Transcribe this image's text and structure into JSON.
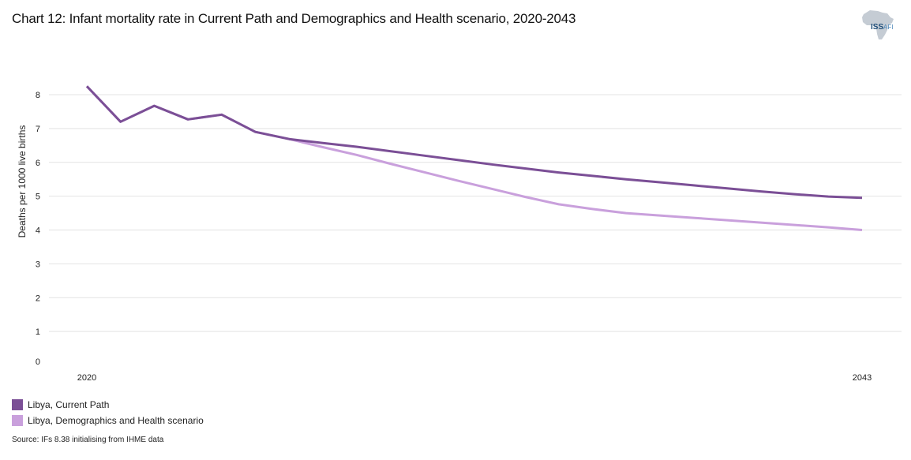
{
  "header": {
    "title": "Chart 12: Infant mortality rate in Current Path and Demographics and Health scenario, 2020-2043",
    "logo_primary": "ISS",
    "logo_secondary": "AFI",
    "logo_icon": "africa-map-icon"
  },
  "footer": {
    "source": "Source: IFs 8.38 initialising from IHME data"
  },
  "chart_data": {
    "type": "line",
    "title": "Chart 12: Infant mortality rate in Current Path and Demographics and Health scenario, 2020-2043",
    "xlabel": "",
    "ylabel": "Deaths per 1000 live births",
    "ylim": [
      0,
      8
    ],
    "yticks": [
      0,
      1,
      2,
      3,
      4,
      5,
      6,
      7,
      8
    ],
    "xlim": [
      2020,
      2043
    ],
    "xtick_labels": [
      "2020",
      "2043"
    ],
    "grid": true,
    "legend_position": "bottom-left",
    "x": [
      2020,
      2021,
      2022,
      2023,
      2024,
      2025,
      2026,
      2027,
      2028,
      2029,
      2030,
      2031,
      2032,
      2033,
      2034,
      2035,
      2036,
      2037,
      2038,
      2039,
      2040,
      2041,
      2042,
      2043
    ],
    "series": [
      {
        "name": "Libya, Current Path",
        "color": "#7b4f96",
        "values": [
          8.25,
          7.2,
          7.67,
          7.27,
          7.41,
          6.9,
          6.69,
          6.57,
          6.46,
          6.33,
          6.2,
          6.07,
          5.94,
          5.82,
          5.7,
          5.6,
          5.5,
          5.41,
          5.32,
          5.23,
          5.14,
          5.06,
          4.99,
          4.95
        ]
      },
      {
        "name": "Libya, Demographics and Health scenario",
        "color": "#c9a0dc",
        "values": [
          8.25,
          7.2,
          7.67,
          7.27,
          7.41,
          6.9,
          6.69,
          6.45,
          6.22,
          5.96,
          5.71,
          5.46,
          5.22,
          4.98,
          4.76,
          4.62,
          4.5,
          4.43,
          4.36,
          4.29,
          4.22,
          4.15,
          4.08,
          4.0
        ]
      }
    ]
  }
}
